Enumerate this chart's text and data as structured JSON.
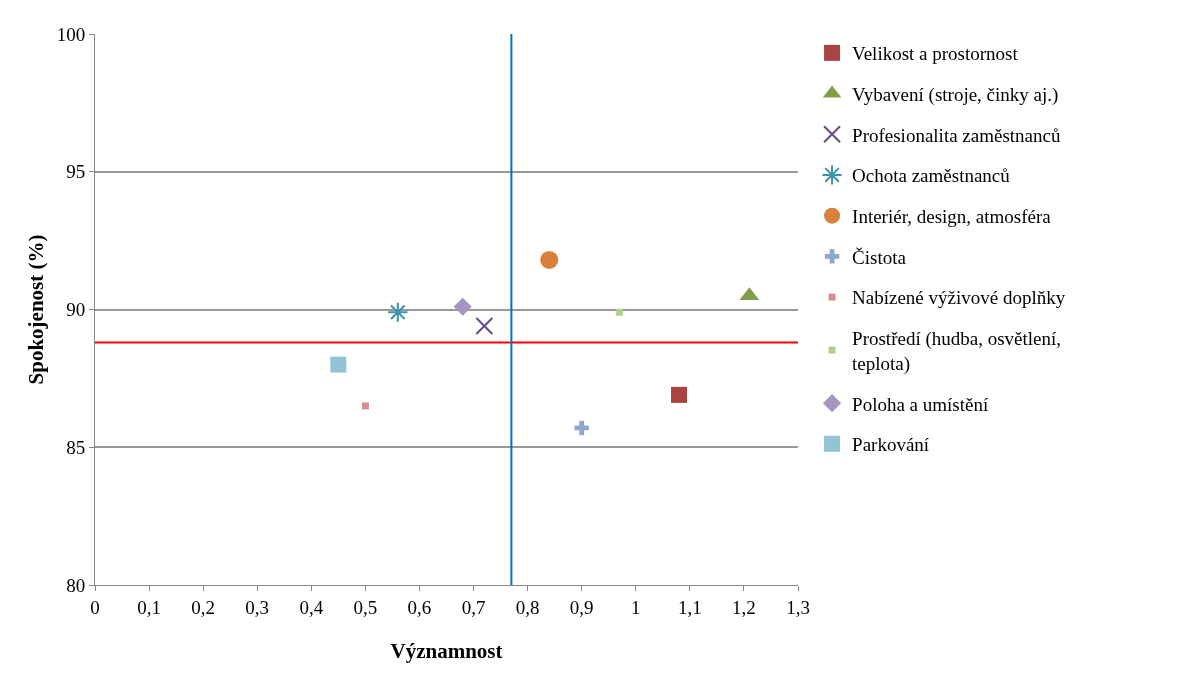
{
  "chart_data": {
    "type": "scatter",
    "xlabel": "Významnost",
    "ylabel": "Spokojenost (%)",
    "xlim": [
      0,
      1.3
    ],
    "ylim": [
      80,
      100
    ],
    "xticks": [
      0,
      {
        "value": 0.1,
        "label": "0,1"
      },
      {
        "value": 0.2,
        "label": "0,2"
      },
      {
        "value": 0.3,
        "label": "0,3"
      },
      {
        "value": 0.4,
        "label": "0,4"
      },
      {
        "value": 0.5,
        "label": "0,5"
      },
      {
        "value": 0.6,
        "label": "0,6"
      },
      {
        "value": 0.7,
        "label": "0,7"
      },
      {
        "value": 0.8,
        "label": "0,8"
      },
      {
        "value": 0.9,
        "label": "0,9"
      },
      1,
      {
        "value": 1.1,
        "label": "1,1"
      },
      {
        "value": 1.2,
        "label": "1,2"
      },
      {
        "value": 1.3,
        "label": "1,3"
      }
    ],
    "yticks": [
      80,
      85,
      90,
      95,
      100
    ],
    "grid": "y",
    "legend": "right",
    "series": [
      {
        "name": "Velikost a prostornost",
        "color": "#a94442",
        "marker": "square",
        "x": [
          1.08
        ],
        "values": [
          86.9
        ]
      },
      {
        "name": "Vybavení (stroje, činky aj.)",
        "color": "#7f9f46",
        "marker": "triangle",
        "x": [
          1.21
        ],
        "values": [
          90.5
        ]
      },
      {
        "name": "Profesionalita zaměstnanců",
        "color": "#634a8a",
        "marker": "cross",
        "x": [
          0.72
        ],
        "values": [
          89.4
        ]
      },
      {
        "name": "Ochota zaměstnanců",
        "color": "#3a93a8",
        "marker": "cross",
        "x": [
          0.56
        ],
        "values": [
          89.9
        ]
      },
      {
        "name": "Interiér, design, atmosféra",
        "color": "#d9803a",
        "marker": "circle",
        "x": [
          0.84
        ],
        "values": [
          91.8
        ]
      },
      {
        "name": "Čistota",
        "color": "#8fa6d0",
        "marker": "cross",
        "x": [
          0.9
        ],
        "values": [
          85.7
        ]
      },
      {
        "name": "Nabízené výživové doplňky",
        "color": "#d68f8f",
        "marker": "square",
        "x": [
          0.5
        ],
        "values": [
          86.5
        ]
      },
      {
        "name": "Prostředí (hudba, osvětlení, teplota)",
        "color": "#b3cd8f",
        "marker": "square",
        "x": [
          0.97
        ],
        "values": [
          89.9
        ]
      },
      {
        "name": "Poloha a umístění",
        "color": "#a595c2",
        "marker": "diamond",
        "x": [
          0.68
        ],
        "values": [
          90.1
        ]
      },
      {
        "name": "Parkování",
        "color": "#93c4d6",
        "marker": "square",
        "x": [
          0.45
        ],
        "values": [
          88.0
        ]
      }
    ],
    "ref_lines": [
      {
        "axis": "y",
        "value": 88.8,
        "color": "#ff0000"
      },
      {
        "axis": "x",
        "value": 0.77,
        "color": "#0070c0"
      }
    ]
  }
}
